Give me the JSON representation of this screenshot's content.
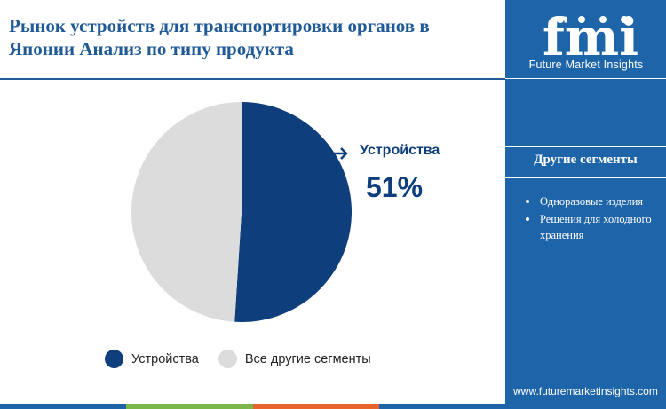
{
  "title": "Рынок устройств для транспортировки органов в Японии Анализ по типу продукта",
  "brand": {
    "logo_text": "fmi",
    "tagline": "Future Market Insights",
    "url": "www.futuremarketinsights.com"
  },
  "sidebar": {
    "heading": "Другие сегменты",
    "items": [
      "Одноразовые изделия",
      "Решения для холодного хранения"
    ]
  },
  "callout": {
    "label": "Устройства",
    "value": "51%"
  },
  "colors": {
    "primary": "#0f3e7c",
    "other": "#dcdcdc",
    "sidebar": "#1e64a8",
    "title": "#1f5a97",
    "strip": [
      "#1e64a8",
      "#7ab648",
      "#e8632b",
      "#1e64a8"
    ]
  },
  "chart_data": {
    "type": "pie",
    "title": "Рынок устройств для транспортировки органов в Японии Анализ по типу продукта",
    "categories": [
      "Устройства",
      "Все другие сегменты"
    ],
    "values": [
      51,
      49
    ],
    "legend_position": "bottom"
  }
}
